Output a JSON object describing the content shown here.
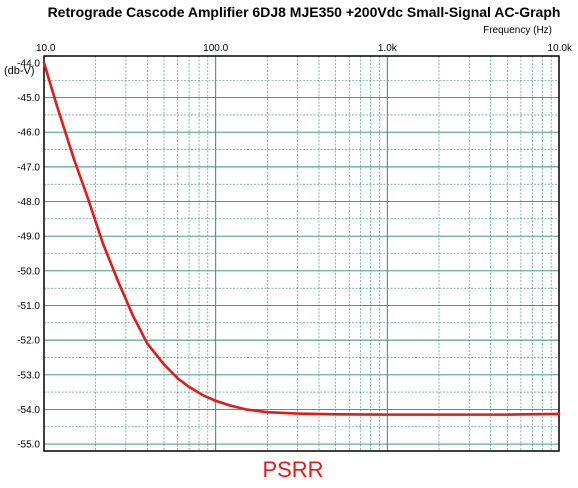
{
  "chart_data": {
    "type": "line",
    "title": "Retrograde Cascode Amplifier 6DJ8 MJE350 +200Vdc Small-Signal AC-Graph",
    "xlabel": "Frequency   (Hz)",
    "ylabel": "(db-V)",
    "caption": "PSRR",
    "x_scale": "log",
    "xlim": [
      10,
      10000
    ],
    "ylim": [
      -55.2,
      -43.8
    ],
    "x_ticks": [
      {
        "value": 10,
        "label": "10.0"
      },
      {
        "value": 100,
        "label": "100.0"
      },
      {
        "value": 1000,
        "label": "1.0k"
      },
      {
        "value": 10000,
        "label": "10.0k"
      }
    ],
    "y_ticks": [
      {
        "value": -44,
        "label": "-44.0"
      },
      {
        "value": -45,
        "label": "-45.0"
      },
      {
        "value": -46,
        "label": "-46.0"
      },
      {
        "value": -47,
        "label": "-47.0"
      },
      {
        "value": -48,
        "label": "-48.0"
      },
      {
        "value": -49,
        "label": "-49.0"
      },
      {
        "value": -50,
        "label": "-50.0"
      },
      {
        "value": -51,
        "label": "-51.0"
      },
      {
        "value": -52,
        "label": "-52.0"
      },
      {
        "value": -53,
        "label": "-53.0"
      },
      {
        "value": -54,
        "label": "-54.0"
      },
      {
        "value": -55,
        "label": "-55.0"
      }
    ],
    "grid": true,
    "line_color": "#e21a1a",
    "grid_color": "#2e8b72",
    "series": [
      {
        "x": [
          10,
          12,
          15,
          18,
          22,
          27,
          33,
          40,
          50,
          60,
          70,
          85,
          100,
          120,
          150,
          200,
          300,
          500,
          1000,
          2000,
          5000,
          10000
        ],
        "y": [
          -44.0,
          -45.3,
          -46.8,
          -47.9,
          -49.2,
          -50.3,
          -51.3,
          -52.1,
          -52.7,
          -53.1,
          -53.35,
          -53.6,
          -53.75,
          -53.88,
          -54.0,
          -54.08,
          -54.12,
          -54.14,
          -54.15,
          -54.15,
          -54.15,
          -54.13
        ]
      }
    ]
  }
}
